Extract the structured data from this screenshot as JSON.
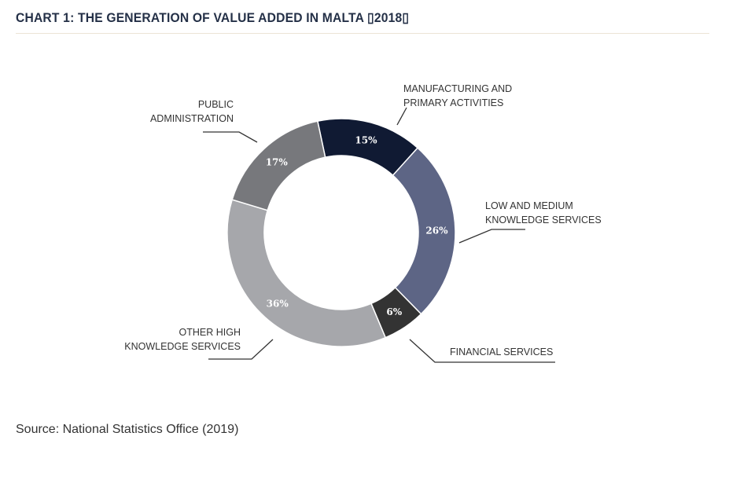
{
  "title": "CHART 1: THE GENERATION OF VALUE ADDED IN MALTA ▯2018▯",
  "source": "Source: National Statistics Office (2019)",
  "chart_data": {
    "type": "pie",
    "donut": true,
    "legend": "none",
    "slices": [
      {
        "label_lines": [
          "MANUFACTURING AND",
          "PRIMARY ACTIVITIES"
        ],
        "value": 15,
        "value_label": "15%",
        "color": "#101a33"
      },
      {
        "label_lines": [
          "LOW AND MEDIUM",
          "KNOWLEDGE SERVICES"
        ],
        "value": 26,
        "value_label": "26%",
        "color": "#5d6585"
      },
      {
        "label_lines": [
          "FINANCIAL SERVICES"
        ],
        "value": 6,
        "value_label": "6%",
        "color": "#333333"
      },
      {
        "label_lines": [
          "OTHER HIGH",
          "KNOWLEDGE SERVICES"
        ],
        "value": 36,
        "value_label": "36%",
        "color": "#a6a7ab"
      },
      {
        "label_lines": [
          "PUBLIC",
          "ADMINISTRATION"
        ],
        "value": 17,
        "value_label": "17%",
        "color": "#77787c"
      }
    ]
  }
}
